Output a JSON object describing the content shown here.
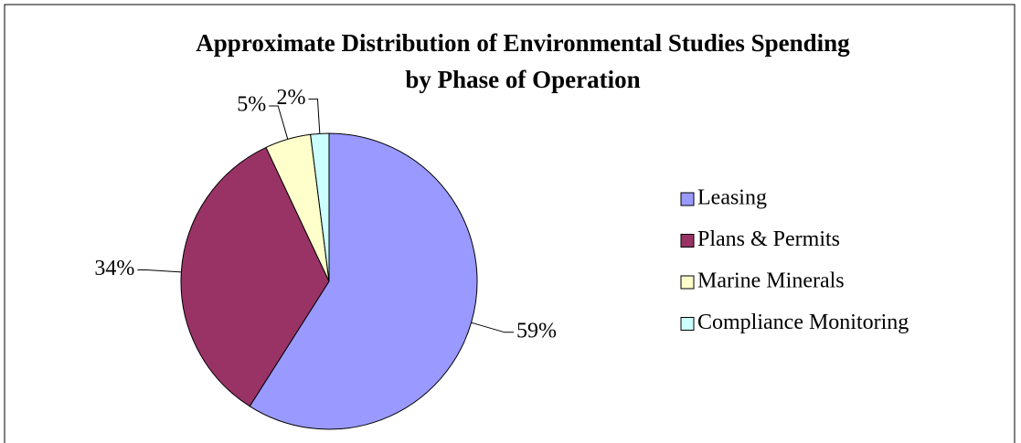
{
  "chart_data": {
    "type": "pie",
    "title": "Approximate Distribution of Environmental Studies Spending by Phase of Operation",
    "categories": [
      "Leasing",
      "Plans & Permits",
      "Marine Minerals",
      "Compliance Monitoring"
    ],
    "values": [
      59,
      34,
      5,
      2
    ],
    "value_labels": [
      "59%",
      "34%",
      "5%",
      "2%"
    ],
    "colors": [
      "#9999ff",
      "#993366",
      "#ffffcc",
      "#ccffff"
    ],
    "legend": "right"
  }
}
